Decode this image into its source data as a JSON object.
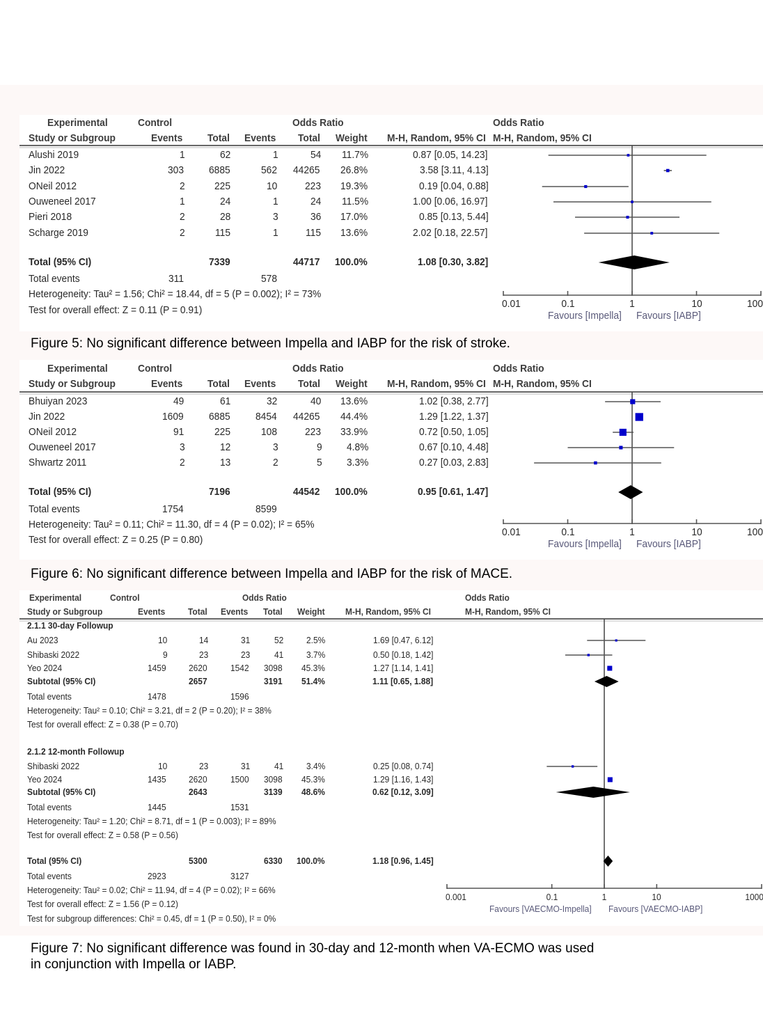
{
  "chart_data": [
    {
      "type": "forest",
      "title": "Figure 5",
      "caption": "Figure 5: No significant difference between Impella and IABP for the risk of stroke.",
      "header": {
        "group_experimental": "Experimental",
        "group_control": "Control",
        "group_or": "Odds Ratio",
        "col_study": "Study or Subgroup",
        "col_exp_events": "Events",
        "col_exp_total": "Total",
        "col_ctrl_events": "Events",
        "col_ctrl_total": "Total",
        "col_weight": "Weight",
        "col_or": "M-H, Random, 95% CI",
        "plot_title": "Odds Ratio",
        "plot_subtitle": "M-H, Random, 95% CI"
      },
      "studies": [
        {
          "study": "Alushi 2019",
          "exp_events": "1",
          "exp_total": "62",
          "ctrl_events": "1",
          "ctrl_total": "54",
          "weight": "11.7%",
          "or_text": "0.87 [0.05, 14.23]",
          "or": 0.87,
          "lo": 0.05,
          "hi": 14.23,
          "w": 11.7
        },
        {
          "study": "Jin 2022",
          "exp_events": "303",
          "exp_total": "6885",
          "ctrl_events": "562",
          "ctrl_total": "44265",
          "weight": "26.8%",
          "or_text": "3.58 [3.11, 4.13]",
          "or": 3.58,
          "lo": 3.11,
          "hi": 4.13,
          "w": 26.8
        },
        {
          "study": "ONeil 2012",
          "exp_events": "2",
          "exp_total": "225",
          "ctrl_events": "10",
          "ctrl_total": "223",
          "weight": "19.3%",
          "or_text": "0.19 [0.04, 0.88]",
          "or": 0.19,
          "lo": 0.04,
          "hi": 0.88,
          "w": 19.3
        },
        {
          "study": "Ouweneel 2017",
          "exp_events": "1",
          "exp_total": "24",
          "ctrl_events": "1",
          "ctrl_total": "24",
          "weight": "11.5%",
          "or_text": "1.00 [0.06, 16.97]",
          "or": 1.0,
          "lo": 0.06,
          "hi": 16.97,
          "w": 11.5
        },
        {
          "study": "Pieri 2018",
          "exp_events": "2",
          "exp_total": "28",
          "ctrl_events": "3",
          "ctrl_total": "36",
          "weight": "17.0%",
          "or_text": "0.85 [0.13, 5.44]",
          "or": 0.85,
          "lo": 0.13,
          "hi": 5.44,
          "w": 17.0
        },
        {
          "study": "Scharge 2019",
          "exp_events": "2",
          "exp_total": "115",
          "ctrl_events": "1",
          "ctrl_total": "115",
          "weight": "13.6%",
          "or_text": "2.02 [0.18, 22.57]",
          "or": 2.02,
          "lo": 0.18,
          "hi": 22.57,
          "w": 13.6
        }
      ],
      "total": {
        "label": "Total (95% CI)",
        "exp_total": "7339",
        "ctrl_total": "44717",
        "weight": "100.0%",
        "or_text": "1.08 [0.30, 3.82]",
        "or": 1.08,
        "lo": 0.3,
        "hi": 3.82
      },
      "total_events": {
        "label": "Total events",
        "exp": "311",
        "ctrl": "578"
      },
      "heterogeneity": "Heterogeneity: Tau² = 1.56; Chi² = 18.44, df = 5 (P = 0.002); I² = 73%",
      "overall_effect": "Test for overall effect: Z = 0.11 (P = 0.91)",
      "axis": {
        "scale": "log",
        "range": [
          0.01,
          100
        ],
        "ticks": [
          "0.01",
          "0.1",
          "1",
          "10",
          "100"
        ],
        "favours_left": "Favours [Impella]",
        "favours_right": "Favours [IABP]"
      }
    },
    {
      "type": "forest",
      "title": "Figure 6",
      "caption": "Figure 6: No significant difference between Impella and IABP for the risk of MACE.",
      "header": {
        "group_experimental": "Experimental",
        "group_control": "Control",
        "group_or": "Odds Ratio",
        "col_study": "Study or Subgroup",
        "col_exp_events": "Events",
        "col_exp_total": "Total",
        "col_ctrl_events": "Events",
        "col_ctrl_total": "Total",
        "col_weight": "Weight",
        "col_or": "M-H, Random, 95% CI",
        "plot_title": "Odds Ratio",
        "plot_subtitle": "M-H, Random, 95% CI"
      },
      "studies": [
        {
          "study": "Bhuiyan 2023",
          "exp_events": "49",
          "exp_total": "61",
          "ctrl_events": "32",
          "ctrl_total": "40",
          "weight": "13.6%",
          "or_text": "1.02 [0.38, 2.77]",
          "or": 1.02,
          "lo": 0.38,
          "hi": 2.77,
          "w": 13.6
        },
        {
          "study": "Jin 2022",
          "exp_events": "1609",
          "exp_total": "6885",
          "ctrl_events": "8454",
          "ctrl_total": "44265",
          "weight": "44.4%",
          "or_text": "1.29 [1.22, 1.37]",
          "or": 1.29,
          "lo": 1.22,
          "hi": 1.37,
          "w": 44.4
        },
        {
          "study": "ONeil 2012",
          "exp_events": "91",
          "exp_total": "225",
          "ctrl_events": "108",
          "ctrl_total": "223",
          "weight": "33.9%",
          "or_text": "0.72 [0.50, 1.05]",
          "or": 0.72,
          "lo": 0.5,
          "hi": 1.05,
          "w": 33.9
        },
        {
          "study": "Ouweneel 2017",
          "exp_events": "3",
          "exp_total": "12",
          "ctrl_events": "3",
          "ctrl_total": "9",
          "weight": "4.8%",
          "or_text": "0.67 [0.10, 4.48]",
          "or": 0.67,
          "lo": 0.1,
          "hi": 4.48,
          "w": 4.8
        },
        {
          "study": "Shwartz 2011",
          "exp_events": "2",
          "exp_total": "13",
          "ctrl_events": "2",
          "ctrl_total": "5",
          "weight": "3.3%",
          "or_text": "0.27 [0.03, 2.83]",
          "or": 0.27,
          "lo": 0.03,
          "hi": 2.83,
          "w": 3.3
        }
      ],
      "total": {
        "label": "Total (95% CI)",
        "exp_total": "7196",
        "ctrl_total": "44542",
        "weight": "100.0%",
        "or_text": "0.95 [0.61, 1.47]",
        "or": 0.95,
        "lo": 0.61,
        "hi": 1.47
      },
      "total_events": {
        "label": "Total events",
        "exp": "1754",
        "ctrl": "8599"
      },
      "heterogeneity": "Heterogeneity: Tau² = 0.11; Chi² = 11.30, df = 4 (P = 0.02); I² = 65%",
      "overall_effect": "Test for overall effect: Z = 0.25 (P = 0.80)",
      "axis": {
        "scale": "log",
        "range": [
          0.01,
          100
        ],
        "ticks": [
          "0.01",
          "0.1",
          "1",
          "10",
          "100"
        ],
        "favours_left": "Favours [Impella]",
        "favours_right": "Favours [IABP]"
      }
    },
    {
      "type": "forest",
      "title": "Figure 7",
      "caption_line1": "Figure 7: No significant difference was found in 30-day and 12-month when VA-ECMO was used",
      "caption_line2": "in conjunction with Impella or IABP.",
      "header": {
        "group_experimental": "Experimental",
        "group_control": "Control",
        "group_or": "Odds Ratio",
        "col_study": "Study or Subgroup",
        "col_exp_events": "Events",
        "col_exp_total": "Total",
        "col_ctrl_events": "Events",
        "col_ctrl_total": "Total",
        "col_weight": "Weight",
        "col_or": "M-H, Random, 95% CI",
        "plot_title": "Odds Ratio",
        "plot_subtitle": "M-H, Random, 95% CI"
      },
      "subgroups": [
        {
          "label": "2.1.1 30-day Followup",
          "studies": [
            {
              "study": "Au 2023",
              "exp_events": "10",
              "exp_total": "14",
              "ctrl_events": "31",
              "ctrl_total": "52",
              "weight": "2.5%",
              "or_text": "1.69 [0.47, 6.12]",
              "or": 1.69,
              "lo": 0.47,
              "hi": 6.12,
              "w": 2.5
            },
            {
              "study": "Shibaski 2022",
              "exp_events": "9",
              "exp_total": "23",
              "ctrl_events": "23",
              "ctrl_total": "41",
              "weight": "3.7%",
              "or_text": "0.50 [0.18, 1.42]",
              "or": 0.5,
              "lo": 0.18,
              "hi": 1.42,
              "w": 3.7
            },
            {
              "study": "Yeo 2024",
              "exp_events": "1459",
              "exp_total": "2620",
              "ctrl_events": "1542",
              "ctrl_total": "3098",
              "weight": "45.3%",
              "or_text": "1.27 [1.14, 1.41]",
              "or": 1.27,
              "lo": 1.14,
              "hi": 1.41,
              "w": 45.3
            }
          ],
          "subtotal": {
            "label": "Subtotal (95% CI)",
            "exp_total": "2657",
            "ctrl_total": "3191",
            "weight": "51.4%",
            "or_text": "1.11 [0.65, 1.88]",
            "or": 1.11,
            "lo": 0.65,
            "hi": 1.88
          },
          "total_events": {
            "label": "Total events",
            "exp": "1478",
            "ctrl": "1596"
          },
          "heterogeneity": "Heterogeneity: Tau² = 0.10; Chi² = 3.21, df = 2 (P = 0.20); I² = 38%",
          "overall_effect": "Test for overall effect: Z = 0.38 (P = 0.70)"
        },
        {
          "label": "2.1.2 12-month Followup",
          "studies": [
            {
              "study": "Shibaski 2022",
              "exp_events": "10",
              "exp_total": "23",
              "ctrl_events": "31",
              "ctrl_total": "41",
              "weight": "3.4%",
              "or_text": "0.25 [0.08, 0.74]",
              "or": 0.25,
              "lo": 0.08,
              "hi": 0.74,
              "w": 3.4
            },
            {
              "study": "Yeo 2024",
              "exp_events": "1435",
              "exp_total": "2620",
              "ctrl_events": "1500",
              "ctrl_total": "3098",
              "weight": "45.3%",
              "or_text": "1.29 [1.16, 1.43]",
              "or": 1.29,
              "lo": 1.16,
              "hi": 1.43,
              "w": 45.3
            }
          ],
          "subtotal": {
            "label": "Subtotal (95% CI)",
            "exp_total": "2643",
            "ctrl_total": "3139",
            "weight": "48.6%",
            "or_text": "0.62 [0.12, 3.09]",
            "or": 0.62,
            "lo": 0.12,
            "hi": 3.09
          },
          "total_events": {
            "label": "Total events",
            "exp": "1445",
            "ctrl": "1531"
          },
          "heterogeneity": "Heterogeneity: Tau² = 1.20; Chi² = 8.71, df = 1 (P = 0.003); I² = 89%",
          "overall_effect": "Test for overall effect: Z = 0.58 (P = 0.56)"
        }
      ],
      "total": {
        "label": "Total (95% CI)",
        "exp_total": "5300",
        "ctrl_total": "6330",
        "weight": "100.0%",
        "or_text": "1.18 [0.96, 1.45]",
        "or": 1.18,
        "lo": 0.96,
        "hi": 1.45
      },
      "total_events": {
        "label": "Total events",
        "exp": "2923",
        "ctrl": "3127"
      },
      "heterogeneity": "Heterogeneity: Tau² = 0.02; Chi² = 11.94, df = 4 (P = 0.02); I² = 66%",
      "overall_effect": "Test for overall effect: Z = 1.56 (P = 0.12)",
      "subgroup_diff": "Test for subgroup differences: Chi² = 0.45, df = 1 (P = 0.50), I² = 0%",
      "axis": {
        "scale": "log",
        "range": [
          0.001,
          1000
        ],
        "ticks": [
          "0.001",
          "0.1",
          "1",
          "10",
          "1000"
        ],
        "tick_values": [
          0.001,
          0.1,
          1,
          10,
          1000
        ],
        "favours_left": "Favours [VAECMO-Impella]",
        "favours_right": "Favours [VAECMO-IABP]"
      }
    }
  ],
  "colors": {
    "marker": "#0000cc",
    "diamond": "#000000",
    "line": "#555555",
    "background_band": "#fdf8f7"
  }
}
